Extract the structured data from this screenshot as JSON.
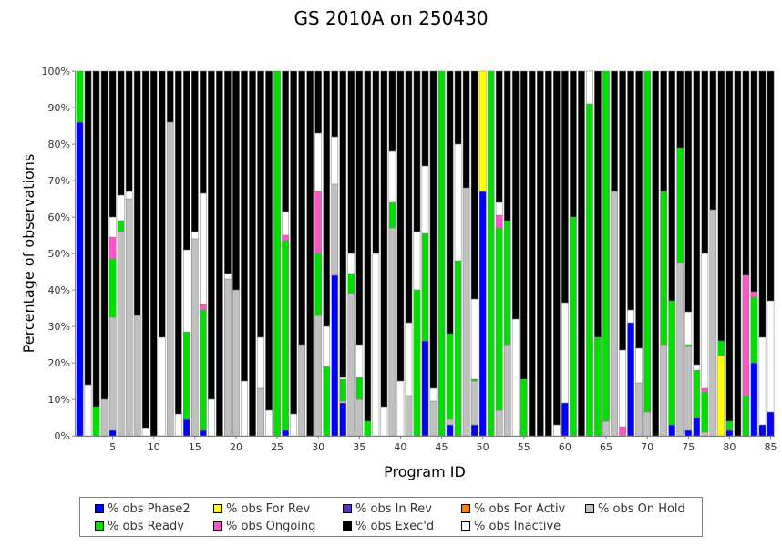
{
  "chart_data": {
    "type": "bar",
    "stacked": true,
    "title": "GS 2010A on 250430",
    "xlabel": "Program ID",
    "ylabel": "Percentage of observations",
    "ylim": [
      0,
      100
    ],
    "ytick_labels": [
      "0%",
      "10%",
      "20%",
      "30%",
      "40%",
      "50%",
      "60%",
      "70%",
      "80%",
      "90%",
      "100%"
    ],
    "xtick_labels": [
      "5",
      "10",
      "15",
      "20",
      "25",
      "30",
      "35",
      "40",
      "45",
      "50",
      "55",
      "60",
      "65",
      "70",
      "75",
      "80",
      "85"
    ],
    "legend_placement": "bottom",
    "grid": false,
    "series": [
      {
        "name": "% obs Phase2",
        "color": "#0000ff"
      },
      {
        "name": "% obs For Rev",
        "color": "#ffff00"
      },
      {
        "name": "% obs In Rev",
        "color": "#5b32c8"
      },
      {
        "name": "% obs For Activ",
        "color": "#ff8000"
      },
      {
        "name": "% obs On Hold",
        "color": "#c0c0c0"
      },
      {
        "name": "% obs Ready",
        "color": "#00e000"
      },
      {
        "name": "% obs Ongoing",
        "color": "#ff55c8"
      },
      {
        "name": "% obs Exec'd",
        "color": "#000000"
      },
      {
        "name": "% obs Inactive",
        "color": "#ffffff"
      }
    ],
    "legend_order": [
      0,
      1,
      2,
      3,
      4,
      5,
      6,
      7,
      8
    ],
    "bars": [
      {
        "x": 1,
        "Phase2": 86,
        "Ready": 14
      },
      {
        "x": 2,
        "Inactive": 14,
        "Execd": 86
      },
      {
        "x": 3,
        "Ready": 8,
        "Execd": 92
      },
      {
        "x": 4,
        "OnHold": 10,
        "Execd": 90
      },
      {
        "x": 5,
        "Phase2": 1.5,
        "OnHold": 31,
        "Ready": 16,
        "Ongoing": 6,
        "Inactive": 5.5,
        "Execd": 40
      },
      {
        "x": 6,
        "OnHold": 56,
        "Ready": 3,
        "Inactive": 7,
        "Execd": 34
      },
      {
        "x": 7,
        "OnHold": 65,
        "Inactive": 2,
        "Execd": 33
      },
      {
        "x": 8,
        "OnHold": 33,
        "Execd": 67
      },
      {
        "x": 9,
        "Inactive": 2,
        "Execd": 98
      },
      {
        "x": 10,
        "Execd": 100
      },
      {
        "x": 11,
        "Inactive": 27,
        "Execd": 73
      },
      {
        "x": 12,
        "OnHold": 86,
        "Execd": 14
      },
      {
        "x": 13,
        "Inactive": 6,
        "Execd": 94
      },
      {
        "x": 14,
        "Phase2": 4.5,
        "Ready": 24,
        "Inactive": 22.5,
        "Execd": 49
      },
      {
        "x": 15,
        "OnHold": 54,
        "Inactive": 2,
        "Execd": 44
      },
      {
        "x": 16,
        "Phase2": 1.5,
        "Ready": 33,
        "Ongoing": 1.5,
        "Inactive": 30.5,
        "Execd": 33.5
      },
      {
        "x": 17,
        "Inactive": 10,
        "Execd": 90
      },
      {
        "x": 18,
        "Execd": 100
      },
      {
        "x": 19,
        "OnHold": 43,
        "Inactive": 1.5,
        "Execd": 55.5
      },
      {
        "x": 20,
        "OnHold": 40,
        "Execd": 60
      },
      {
        "x": 21,
        "Inactive": 15,
        "Execd": 85
      },
      {
        "x": 22,
        "Execd": 100
      },
      {
        "x": 23,
        "OnHold": 13,
        "Inactive": 14,
        "Execd": 73
      },
      {
        "x": 24,
        "Inactive": 7,
        "Execd": 93
      },
      {
        "x": 25,
        "Ready": 100
      },
      {
        "x": 26,
        "Phase2": 1.5,
        "Ready": 52,
        "Ongoing": 1.5,
        "Inactive": 6.5,
        "Execd": 38.5
      },
      {
        "x": 27,
        "Inactive": 6,
        "Execd": 94
      },
      {
        "x": 28,
        "OnHold": 25,
        "Execd": 75
      },
      {
        "x": 29,
        "Execd": 100
      },
      {
        "x": 30,
        "OnHold": 33,
        "Ready": 17,
        "Ongoing": 17,
        "Inactive": 16,
        "Execd": 17
      },
      {
        "x": 31,
        "Ready": 19,
        "Inactive": 11,
        "Execd": 70
      },
      {
        "x": 32,
        "Phase2": 44,
        "OnHold": 25,
        "Inactive": 13,
        "Execd": 18
      },
      {
        "x": 33,
        "Phase2": 9,
        "Ready": 6,
        "OnHold": 0.5,
        "Inactive": 0.5,
        "Execd": 84
      },
      {
        "x": 34,
        "OnHold": 39,
        "Ready": 5.5,
        "Inactive": 5.5,
        "Execd": 50
      },
      {
        "x": 35,
        "OnHold": 10,
        "Ready": 6,
        "Inactive": 9,
        "Execd": 75
      },
      {
        "x": 36,
        "Ready": 4,
        "Execd": 96
      },
      {
        "x": 37,
        "Inactive": 50,
        "Execd": 50
      },
      {
        "x": 38,
        "Inactive": 8,
        "Execd": 92
      },
      {
        "x": 39,
        "OnHold": 57,
        "Ready": 7,
        "Inactive": 14,
        "Execd": 22
      },
      {
        "x": 40,
        "Inactive": 15,
        "Execd": 85
      },
      {
        "x": 41,
        "OnHold": 11,
        "Inactive": 20,
        "Execd": 69
      },
      {
        "x": 42,
        "Ready": 40,
        "Inactive": 16,
        "Execd": 44
      },
      {
        "x": 43,
        "Phase2": 26,
        "Ready": 29.5,
        "Inactive": 18.5,
        "Execd": 26
      },
      {
        "x": 44,
        "OnHold": 9.5,
        "Inactive": 3.5,
        "Execd": 87
      },
      {
        "x": 45,
        "Ready": 100
      },
      {
        "x": 46,
        "Phase2": 3,
        "OnHold": 1.5,
        "Ready": 23.5,
        "Execd": 72
      },
      {
        "x": 47,
        "Ready": 48,
        "Inactive": 32,
        "Execd": 20
      },
      {
        "x": 48,
        "OnHold": 68,
        "Execd": 32
      },
      {
        "x": 49,
        "Phase2": 3,
        "OnHold": 12,
        "Ready": 0.5,
        "Inactive": 22,
        "Execd": 62.5
      },
      {
        "x": 50,
        "Phase2": 67,
        "ForRev": 33
      },
      {
        "x": 51,
        "Ready": 100
      },
      {
        "x": 52,
        "OnHold": 7,
        "Ready": 50,
        "Ongoing": 3.5,
        "Inactive": 3.5,
        "Execd": 36
      },
      {
        "x": 53,
        "OnHold": 25,
        "Ready": 34,
        "Execd": 41
      },
      {
        "x": 54,
        "Inactive": 32,
        "Execd": 68
      },
      {
        "x": 55,
        "Ready": 15.5,
        "Execd": 84.5
      },
      {
        "x": 56,
        "Execd": 100
      },
      {
        "x": 57,
        "Execd": 100
      },
      {
        "x": 58,
        "Execd": 100
      },
      {
        "x": 59,
        "Inactive": 3,
        "Execd": 97
      },
      {
        "x": 60,
        "Phase2": 9,
        "Inactive": 27.5,
        "Execd": 63.5
      },
      {
        "x": 61,
        "Ready": 60,
        "Execd": 40
      },
      {
        "x": 62,
        "Execd": 100
      },
      {
        "x": 63,
        "Ready": 91,
        "Inactive": 9
      },
      {
        "x": 64,
        "Ready": 27,
        "Execd": 73
      },
      {
        "x": 65,
        "OnHold": 4,
        "Ready": 96
      },
      {
        "x": 66,
        "OnHold": 67,
        "Execd": 33
      },
      {
        "x": 67,
        "Ongoing": 2.5,
        "Inactive": 21,
        "Execd": 76.5
      },
      {
        "x": 68,
        "Phase2": 31,
        "Inactive": 3.5,
        "Execd": 65.5
      },
      {
        "x": 69,
        "OnHold": 14.5,
        "Inactive": 9.5,
        "Execd": 76
      },
      {
        "x": 70,
        "OnHold": 6.5,
        "Ready": 93.5
      },
      {
        "x": 71,
        "Execd": 100
      },
      {
        "x": 72,
        "OnHold": 25,
        "Ready": 42,
        "Execd": 33
      },
      {
        "x": 73,
        "Phase2": 3,
        "Ready": 34,
        "Execd": 63
      },
      {
        "x": 74,
        "OnHold": 47.5,
        "Ready": 31.5,
        "Execd": 21
      },
      {
        "x": 75,
        "Phase2": 1.5,
        "OnHold": 23,
        "Ready": 0.5,
        "Inactive": 9,
        "Execd": 66
      },
      {
        "x": 76,
        "Phase2": 5,
        "Ready": 13,
        "Inactive": 1.5,
        "Execd": 80.5
      },
      {
        "x": 77,
        "OnHold": 1,
        "Ready": 11,
        "Ongoing": 1,
        "Inactive": 37,
        "Execd": 50
      },
      {
        "x": 78,
        "OnHold": 62,
        "Execd": 38
      },
      {
        "x": 79,
        "ForRev": 22,
        "Ready": 4,
        "Execd": 74
      },
      {
        "x": 80,
        "Phase2": 1.5,
        "Ready": 2.5,
        "Execd": 96
      },
      {
        "x": 81,
        "Execd": 100
      },
      {
        "x": 82,
        "Ready": 11,
        "Ongoing": 33,
        "Execd": 56
      },
      {
        "x": 83,
        "Phase2": 20,
        "Ready": 18,
        "Ongoing": 1.5,
        "Execd": 60.5
      },
      {
        "x": 84,
        "Phase2": 3,
        "Inactive": 24,
        "Execd": 73
      },
      {
        "x": 85,
        "Phase2": 6.5,
        "Inactive": 30.5,
        "Execd": 63
      }
    ]
  },
  "legend": {
    "items": [
      {
        "label": "% obs Phase2",
        "color": "#0000ff"
      },
      {
        "label": "% obs For Rev",
        "color": "#ffff00"
      },
      {
        "label": "% obs In Rev",
        "color": "#5b32c8"
      },
      {
        "label": "% obs For Activ",
        "color": "#ff8000"
      },
      {
        "label": "% obs On Hold",
        "color": "#c0c0c0"
      },
      {
        "label": "% obs Ready",
        "color": "#00e000"
      },
      {
        "label": "% obs Ongoing",
        "color": "#ff55c8"
      },
      {
        "label": "% obs Exec'd",
        "color": "#000000"
      },
      {
        "label": "% obs Inactive",
        "color": "#ffffff"
      }
    ]
  }
}
